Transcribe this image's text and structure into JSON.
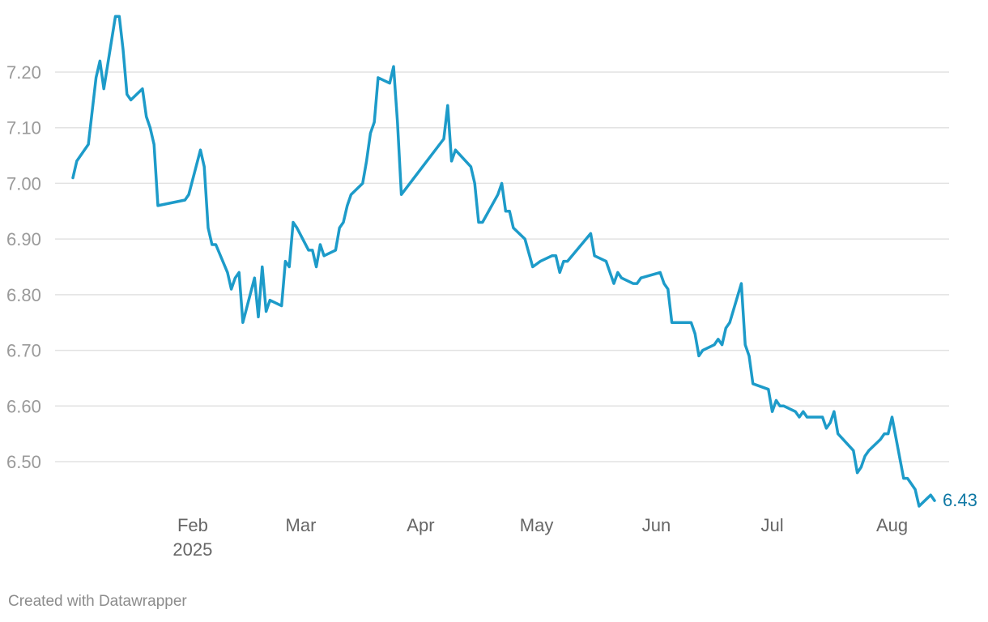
{
  "chart_data": {
    "type": "line",
    "title": "",
    "xlabel": "",
    "ylabel": "",
    "grid": true,
    "ylim": [
      6.42,
      7.3
    ],
    "xlim": [
      "2025-01-01",
      "2025-08-16"
    ],
    "y_ticks": [
      "7.20",
      "7.10",
      "7.00",
      "6.90",
      "6.80",
      "6.70",
      "6.60",
      "6.50"
    ],
    "y_tick_values": [
      7.2,
      7.1,
      7.0,
      6.9,
      6.8,
      6.7,
      6.6,
      6.5
    ],
    "x_ticks": [
      {
        "date": "2025-02-01",
        "label": "Feb",
        "sublabel": "2025"
      },
      {
        "date": "2025-03-01",
        "label": "Mar",
        "sublabel": ""
      },
      {
        "date": "2025-04-01",
        "label": "Apr",
        "sublabel": ""
      },
      {
        "date": "2025-05-01",
        "label": "May",
        "sublabel": ""
      },
      {
        "date": "2025-06-01",
        "label": "Jun",
        "sublabel": ""
      },
      {
        "date": "2025-07-01",
        "label": "Jul",
        "sublabel": ""
      },
      {
        "date": "2025-08-01",
        "label": "Aug",
        "sublabel": ""
      }
    ],
    "series": [
      {
        "color": "#1d9bc9",
        "end_label": "6.43",
        "points": [
          [
            "2025-01-01",
            7.01
          ],
          [
            "2025-01-02",
            7.04
          ],
          [
            "2025-01-05",
            7.07
          ],
          [
            "2025-01-07",
            7.19
          ],
          [
            "2025-01-08",
            7.22
          ],
          [
            "2025-01-09",
            7.17
          ],
          [
            "2025-01-12",
            7.3
          ],
          [
            "2025-01-13",
            7.3
          ],
          [
            "2025-01-14",
            7.24
          ],
          [
            "2025-01-15",
            7.16
          ],
          [
            "2025-01-16",
            7.15
          ],
          [
            "2025-01-19",
            7.17
          ],
          [
            "2025-01-20",
            7.12
          ],
          [
            "2025-01-21",
            7.1
          ],
          [
            "2025-01-22",
            7.07
          ],
          [
            "2025-01-23",
            6.96
          ],
          [
            "2025-01-30",
            6.97
          ],
          [
            "2025-01-31",
            6.98
          ],
          [
            "2025-02-03",
            7.06
          ],
          [
            "2025-02-04",
            7.03
          ],
          [
            "2025-02-05",
            6.92
          ],
          [
            "2025-02-06",
            6.89
          ],
          [
            "2025-02-07",
            6.89
          ],
          [
            "2025-02-10",
            6.84
          ],
          [
            "2025-02-11",
            6.81
          ],
          [
            "2025-02-12",
            6.83
          ],
          [
            "2025-02-13",
            6.84
          ],
          [
            "2025-02-14",
            6.75
          ],
          [
            "2025-02-17",
            6.83
          ],
          [
            "2025-02-18",
            6.76
          ],
          [
            "2025-02-19",
            6.85
          ],
          [
            "2025-02-20",
            6.77
          ],
          [
            "2025-02-21",
            6.79
          ],
          [
            "2025-02-24",
            6.78
          ],
          [
            "2025-02-25",
            6.86
          ],
          [
            "2025-02-26",
            6.85
          ],
          [
            "2025-02-27",
            6.93
          ],
          [
            "2025-02-28",
            6.92
          ],
          [
            "2025-03-03",
            6.88
          ],
          [
            "2025-03-04",
            6.88
          ],
          [
            "2025-03-05",
            6.85
          ],
          [
            "2025-03-06",
            6.89
          ],
          [
            "2025-03-07",
            6.87
          ],
          [
            "2025-03-10",
            6.88
          ],
          [
            "2025-03-11",
            6.92
          ],
          [
            "2025-03-12",
            6.93
          ],
          [
            "2025-03-13",
            6.96
          ],
          [
            "2025-03-14",
            6.98
          ],
          [
            "2025-03-17",
            7.0
          ],
          [
            "2025-03-18",
            7.04
          ],
          [
            "2025-03-19",
            7.09
          ],
          [
            "2025-03-20",
            7.11
          ],
          [
            "2025-03-21",
            7.19
          ],
          [
            "2025-03-24",
            7.18
          ],
          [
            "2025-03-25",
            7.21
          ],
          [
            "2025-03-26",
            7.11
          ],
          [
            "2025-03-27",
            6.98
          ],
          [
            "2025-04-07",
            7.08
          ],
          [
            "2025-04-08",
            7.14
          ],
          [
            "2025-04-09",
            7.04
          ],
          [
            "2025-04-10",
            7.06
          ],
          [
            "2025-04-14",
            7.03
          ],
          [
            "2025-04-15",
            7.0
          ],
          [
            "2025-04-16",
            6.93
          ],
          [
            "2025-04-17",
            6.93
          ],
          [
            "2025-04-21",
            6.98
          ],
          [
            "2025-04-22",
            7.0
          ],
          [
            "2025-04-23",
            6.95
          ],
          [
            "2025-04-24",
            6.95
          ],
          [
            "2025-04-25",
            6.92
          ],
          [
            "2025-04-28",
            6.9
          ],
          [
            "2025-04-30",
            6.85
          ],
          [
            "2025-05-02",
            6.86
          ],
          [
            "2025-05-05",
            6.87
          ],
          [
            "2025-05-06",
            6.87
          ],
          [
            "2025-05-07",
            6.84
          ],
          [
            "2025-05-08",
            6.86
          ],
          [
            "2025-05-09",
            6.86
          ],
          [
            "2025-05-15",
            6.91
          ],
          [
            "2025-05-16",
            6.87
          ],
          [
            "2025-05-19",
            6.86
          ],
          [
            "2025-05-21",
            6.82
          ],
          [
            "2025-05-22",
            6.84
          ],
          [
            "2025-05-23",
            6.83
          ],
          [
            "2025-05-26",
            6.82
          ],
          [
            "2025-05-27",
            6.82
          ],
          [
            "2025-05-28",
            6.83
          ],
          [
            "2025-06-02",
            6.84
          ],
          [
            "2025-06-03",
            6.82
          ],
          [
            "2025-06-04",
            6.81
          ],
          [
            "2025-06-05",
            6.75
          ],
          [
            "2025-06-10",
            6.75
          ],
          [
            "2025-06-11",
            6.73
          ],
          [
            "2025-06-12",
            6.69
          ],
          [
            "2025-06-13",
            6.7
          ],
          [
            "2025-06-16",
            6.71
          ],
          [
            "2025-06-17",
            6.72
          ],
          [
            "2025-06-18",
            6.71
          ],
          [
            "2025-06-19",
            6.74
          ],
          [
            "2025-06-20",
            6.75
          ],
          [
            "2025-06-23",
            6.82
          ],
          [
            "2025-06-24",
            6.71
          ],
          [
            "2025-06-25",
            6.69
          ],
          [
            "2025-06-26",
            6.64
          ],
          [
            "2025-06-30",
            6.63
          ],
          [
            "2025-07-01",
            6.59
          ],
          [
            "2025-07-02",
            6.61
          ],
          [
            "2025-07-03",
            6.6
          ],
          [
            "2025-07-04",
            6.6
          ],
          [
            "2025-07-07",
            6.59
          ],
          [
            "2025-07-08",
            6.58
          ],
          [
            "2025-07-09",
            6.59
          ],
          [
            "2025-07-10",
            6.58
          ],
          [
            "2025-07-11",
            6.58
          ],
          [
            "2025-07-14",
            6.58
          ],
          [
            "2025-07-15",
            6.56
          ],
          [
            "2025-07-16",
            6.57
          ],
          [
            "2025-07-17",
            6.59
          ],
          [
            "2025-07-18",
            6.55
          ],
          [
            "2025-07-22",
            6.52
          ],
          [
            "2025-07-23",
            6.48
          ],
          [
            "2025-07-24",
            6.49
          ],
          [
            "2025-07-25",
            6.51
          ],
          [
            "2025-07-26",
            6.52
          ],
          [
            "2025-07-29",
            6.54
          ],
          [
            "2025-07-30",
            6.55
          ],
          [
            "2025-07-31",
            6.55
          ],
          [
            "2025-08-01",
            6.58
          ],
          [
            "2025-08-04",
            6.47
          ],
          [
            "2025-08-05",
            6.47
          ],
          [
            "2025-08-06",
            6.46
          ],
          [
            "2025-08-07",
            6.45
          ],
          [
            "2025-08-08",
            6.42
          ],
          [
            "2025-08-11",
            6.44
          ],
          [
            "2025-08-12",
            6.43
          ]
        ]
      }
    ]
  },
  "footer": {
    "credit": "Created with Datawrapper"
  }
}
